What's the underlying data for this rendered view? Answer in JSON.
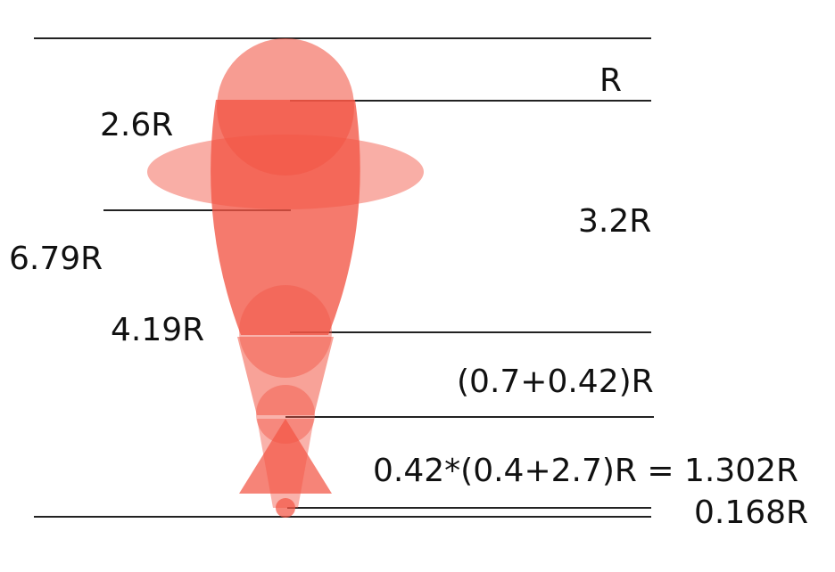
{
  "colors": {
    "shape": "#f25544",
    "line": "#222222"
  },
  "labels": {
    "r": "R",
    "r_2_6": "2.6R",
    "r_6_79": "6.79R",
    "r_3_2": "3.2R",
    "r_4_19": "4.19R",
    "r_sum": "(0.7+0.42)R",
    "formula": "0.42*(0.4+2.7)R = 1.302R",
    "r_0_168": "0.168R"
  }
}
